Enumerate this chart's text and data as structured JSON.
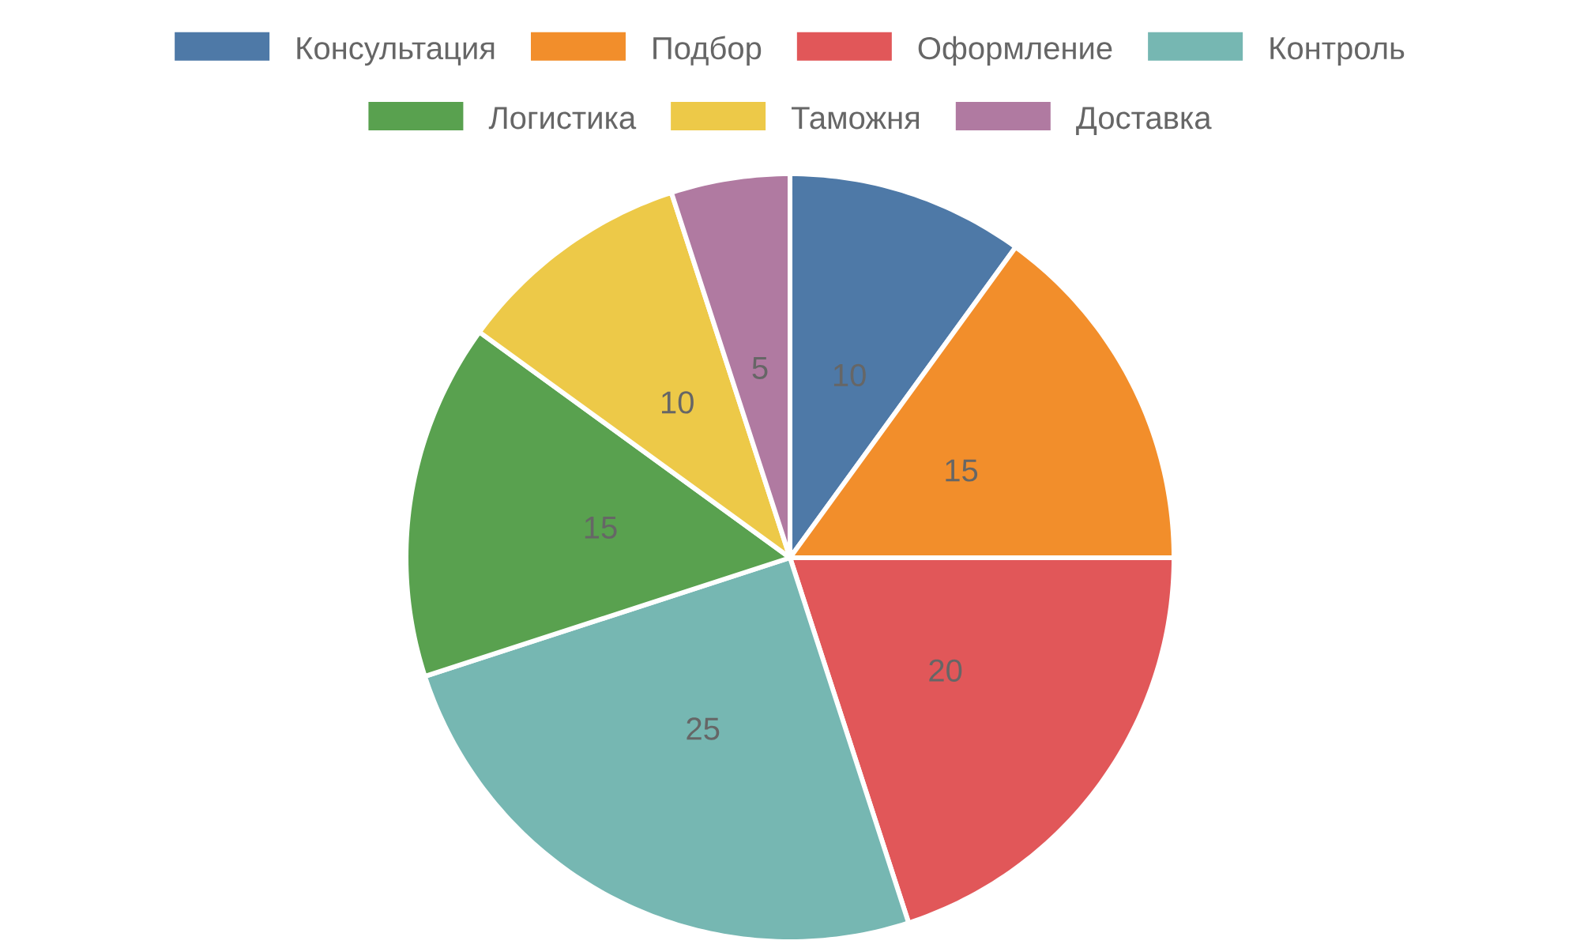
{
  "chart_data": {
    "type": "pie",
    "categories": [
      "Консультация",
      "Подбор",
      "Оформление",
      "Контроль",
      "Логистика",
      "Таможня",
      "Доставка"
    ],
    "values": [
      10,
      15,
      20,
      25,
      15,
      10,
      5
    ],
    "colors": [
      "#4e79a7",
      "#f28e2b",
      "#e15759",
      "#76b7b2",
      "#59a14f",
      "#edc948",
      "#b07aa1"
    ],
    "data_labels": true,
    "legend": "top"
  }
}
